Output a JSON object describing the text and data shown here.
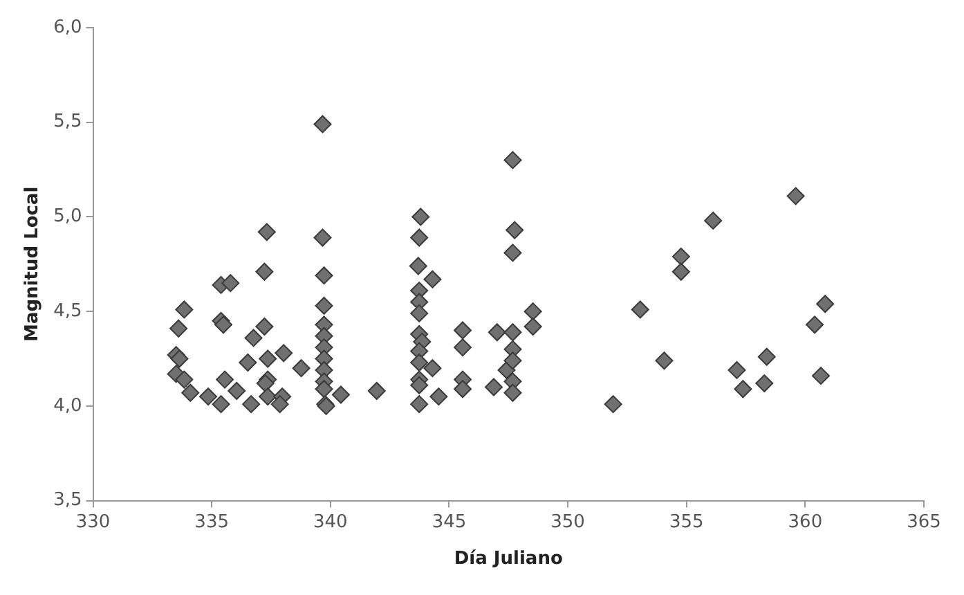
{
  "chart_data": {
    "type": "scatter",
    "xlabel": "Día Juliano",
    "ylabel": "Magnitud Local",
    "marker": "diamond",
    "grid": false,
    "legend": false,
    "xlim": [
      330,
      365
    ],
    "xticks": [
      330,
      335,
      340,
      345,
      350,
      355,
      360,
      365
    ],
    "ylim": [
      3.5,
      6.0
    ],
    "yticks": [
      {
        "value": 3.5,
        "label": "3,5"
      },
      {
        "value": 4.0,
        "label": "4,0"
      },
      {
        "value": 4.5,
        "label": "4,5"
      },
      {
        "value": 5.0,
        "label": "5,0"
      },
      {
        "value": 5.5,
        "label": "5,5"
      },
      {
        "value": 6.0,
        "label": "6,0"
      }
    ],
    "series": [
      {
        "color": "#707070",
        "x": [
          339.67,
          337.32,
          339.67,
          337.22,
          339.73,
          335.39,
          335.79,
          333.84,
          339.73,
          333.6,
          335.39,
          335.49,
          337.22,
          336.76,
          339.73,
          339.73,
          339.73,
          333.5,
          333.64,
          336.52,
          337.36,
          338.03,
          338.77,
          339.73,
          339.73,
          333.5,
          333.84,
          335.55,
          337.36,
          337.26,
          339.73,
          339.73,
          334.1,
          334.85,
          335.39,
          336.05,
          336.66,
          337.36,
          337.97,
          337.87,
          339.78,
          339.82,
          340.44,
          341.95,
          347.68,
          343.8,
          343.74,
          347.76,
          347.68,
          343.7,
          344.3,
          343.74,
          343.74,
          343.74,
          348.53,
          348.53,
          345.57,
          345.57,
          347.02,
          347.68,
          347.68,
          343.74,
          343.86,
          343.74,
          343.74,
          343.74,
          343.74,
          343.74,
          344.3,
          344.56,
          345.57,
          345.57,
          346.88,
          347.42,
          347.68,
          347.68,
          347.68,
          351.91,
          359.6,
          356.12,
          354.77,
          354.77,
          353.05,
          360.84,
          360.4,
          354.06,
          357.12,
          357.38,
          358.38,
          358.28,
          360.66
        ],
        "values": [
          5.49,
          4.92,
          4.89,
          4.71,
          4.69,
          4.64,
          4.65,
          4.51,
          4.53,
          4.41,
          4.45,
          4.43,
          4.42,
          4.36,
          4.43,
          4.37,
          4.31,
          4.27,
          4.25,
          4.23,
          4.25,
          4.28,
          4.2,
          4.25,
          4.19,
          4.17,
          4.14,
          4.14,
          4.14,
          4.12,
          4.13,
          4.09,
          4.07,
          4.05,
          4.01,
          4.08,
          4.01,
          4.05,
          4.05,
          4.01,
          4.01,
          4.0,
          4.06,
          4.08,
          5.3,
          5.0,
          4.89,
          4.93,
          4.81,
          4.74,
          4.67,
          4.61,
          4.55,
          4.49,
          4.5,
          4.42,
          4.4,
          4.31,
          4.39,
          4.39,
          4.3,
          4.38,
          4.34,
          4.29,
          4.23,
          4.14,
          4.11,
          4.01,
          4.2,
          4.05,
          4.14,
          4.09,
          4.1,
          4.19,
          4.24,
          4.13,
          4.07,
          4.01,
          5.11,
          4.98,
          4.79,
          4.71,
          4.51,
          4.54,
          4.43,
          4.24,
          4.19,
          4.09,
          4.26,
          4.12,
          4.16
        ]
      }
    ]
  }
}
